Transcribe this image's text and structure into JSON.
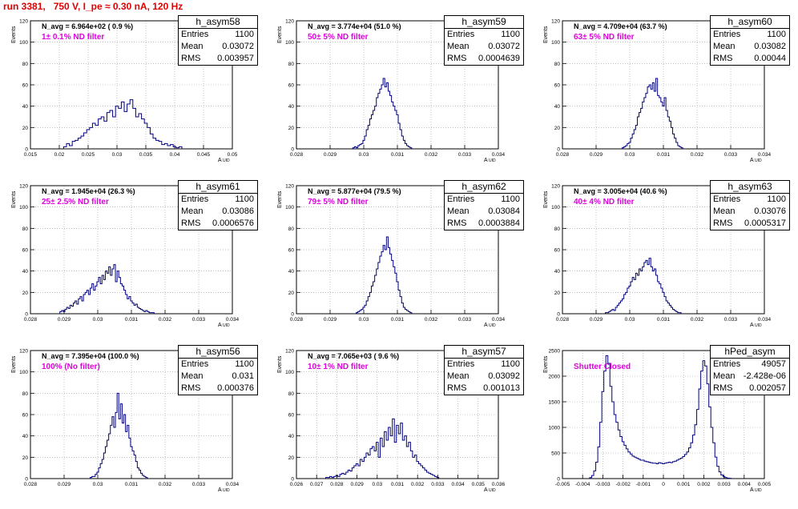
{
  "title": "run 3381,   750 V, I_pe ≈ 0.30 nA, 120 Hz",
  "chart_data": [
    {
      "type": "bar",
      "histogram": true,
      "name": "h_asym58",
      "stats": {
        "entries": "1100",
        "mean": "0.03072",
        "rms": "0.003957"
      },
      "n_avg": "N_avg = 6.964e+02 ( 0.9 %)",
      "filter": "1± 0.1% ND filter",
      "xlabel": "A",
      "xlabel_sub": "UID",
      "ylabel": "Events",
      "xlim": [
        0.015,
        0.05
      ],
      "ylim": [
        0,
        120
      ],
      "xticks": [
        "0.015",
        "0.02",
        "0.025",
        "0.03",
        "0.035",
        "0.04",
        "0.045",
        "0.05"
      ],
      "yticks": [
        "0",
        "20",
        "40",
        "60",
        "80",
        "100",
        "120"
      ],
      "x": [
        0.021,
        0.0215,
        0.022,
        0.0225,
        0.023,
        0.0235,
        0.024,
        0.0245,
        0.025,
        0.0255,
        0.026,
        0.0265,
        0.027,
        0.0275,
        0.028,
        0.0285,
        0.029,
        0.0295,
        0.03,
        0.0305,
        0.031,
        0.0315,
        0.032,
        0.0325,
        0.033,
        0.0335,
        0.034,
        0.0345,
        0.035,
        0.0355,
        0.036,
        0.0365,
        0.037,
        0.0375,
        0.038,
        0.0385,
        0.039,
        0.0395,
        0.04,
        0.0405,
        0.041
      ],
      "values": [
        2,
        5,
        3,
        7,
        8,
        10,
        12,
        15,
        18,
        20,
        24,
        22,
        28,
        30,
        26,
        34,
        36,
        30,
        40,
        38,
        44,
        35,
        42,
        46,
        38,
        30,
        33,
        28,
        24,
        20,
        14,
        10,
        8,
        7,
        4,
        5,
        3,
        4,
        2,
        1,
        2
      ]
    },
    {
      "type": "bar",
      "histogram": true,
      "name": "h_asym59",
      "stats": {
        "entries": "1100",
        "mean": "0.03072",
        "rms": "0.0004639"
      },
      "n_avg": "N_avg = 3.774e+04 (51.0 %)",
      "filter": "50± 5% ND filter",
      "xlabel": "A",
      "xlabel_sub": "UID",
      "ylabel": "Events",
      "xlim": [
        0.028,
        0.034
      ],
      "ylim": [
        0,
        120
      ],
      "xticks": [
        "0.028",
        "0.029",
        "0.03",
        "0.031",
        "0.032",
        "0.033",
        "0.034"
      ],
      "yticks": [
        "0",
        "20",
        "40",
        "60",
        "80",
        "100",
        "120"
      ],
      "x": [
        0.0297,
        0.02975,
        0.0298,
        0.02985,
        0.0299,
        0.02995,
        0.03,
        0.03005,
        0.0301,
        0.03015,
        0.0302,
        0.03025,
        0.0303,
        0.03035,
        0.0304,
        0.03045,
        0.0305,
        0.03055,
        0.0306,
        0.03065,
        0.0307,
        0.03075,
        0.0308,
        0.03085,
        0.0309,
        0.03095,
        0.031,
        0.03105,
        0.0311,
        0.03115,
        0.0312,
        0.03125,
        0.0313,
        0.03135,
        0.0314
      ],
      "values": [
        1,
        2,
        1,
        3,
        4,
        5,
        8,
        12,
        18,
        22,
        28,
        32,
        36,
        40,
        48,
        52,
        56,
        60,
        66,
        58,
        62,
        54,
        50,
        44,
        40,
        36,
        32,
        24,
        18,
        12,
        8,
        5,
        3,
        2,
        1
      ]
    },
    {
      "type": "bar",
      "histogram": true,
      "name": "h_asym60",
      "stats": {
        "entries": "1100",
        "mean": "0.03082",
        "rms": "0.00044"
      },
      "n_avg": "N_avg = 4.709e+04 (63.7 %)",
      "filter": "63± 5% ND filter",
      "xlabel": "A",
      "xlabel_sub": "UID",
      "ylabel": "Events",
      "xlim": [
        0.028,
        0.034
      ],
      "ylim": [
        0,
        120
      ],
      "xticks": [
        "0.028",
        "0.029",
        "0.03",
        "0.031",
        "0.032",
        "0.033",
        "0.034"
      ],
      "yticks": [
        "0",
        "20",
        "40",
        "60",
        "80",
        "100",
        "120"
      ],
      "x": [
        0.0298,
        0.02985,
        0.0299,
        0.02995,
        0.03,
        0.03005,
        0.0301,
        0.03015,
        0.0302,
        0.03025,
        0.0303,
        0.03035,
        0.0304,
        0.03045,
        0.0305,
        0.03055,
        0.0306,
        0.03065,
        0.0307,
        0.03075,
        0.0308,
        0.03085,
        0.0309,
        0.03095,
        0.031,
        0.03105,
        0.0311,
        0.03115,
        0.0312,
        0.03125,
        0.0313,
        0.03135,
        0.0314,
        0.03145,
        0.0315,
        0.03155
      ],
      "values": [
        1,
        2,
        3,
        5,
        6,
        10,
        14,
        18,
        22,
        30,
        34,
        38,
        44,
        48,
        52,
        58,
        60,
        56,
        62,
        54,
        66,
        50,
        48,
        44,
        40,
        48,
        36,
        30,
        26,
        20,
        14,
        10,
        6,
        3,
        2,
        1
      ]
    },
    {
      "type": "bar",
      "histogram": true,
      "name": "h_asym61",
      "stats": {
        "entries": "1100",
        "mean": "0.03086",
        "rms": "0.0006576"
      },
      "n_avg": "N_avg = 1.945e+04 (26.3 %)",
      "filter": "25± 2.5% ND filter",
      "xlabel": "A",
      "xlabel_sub": "UID",
      "ylabel": "Events",
      "xlim": [
        0.028,
        0.034
      ],
      "ylim": [
        0,
        120
      ],
      "xticks": [
        "0.028",
        "0.029",
        "0.03",
        "0.031",
        "0.032",
        "0.033",
        "0.034"
      ],
      "yticks": [
        "0",
        "20",
        "40",
        "60",
        "80",
        "100",
        "120"
      ],
      "x": [
        0.0289,
        0.02895,
        0.029,
        0.02905,
        0.0291,
        0.02915,
        0.0292,
        0.02925,
        0.0293,
        0.02935,
        0.0294,
        0.02945,
        0.0295,
        0.02955,
        0.0296,
        0.02965,
        0.0297,
        0.02975,
        0.0298,
        0.02985,
        0.0299,
        0.02995,
        0.03,
        0.03005,
        0.0301,
        0.03015,
        0.0302,
        0.03025,
        0.0303,
        0.03035,
        0.0304,
        0.03045,
        0.0305,
        0.03055,
        0.0306,
        0.03065,
        0.0307,
        0.03075,
        0.0308,
        0.03085,
        0.0309,
        0.03095,
        0.031,
        0.03105,
        0.0311,
        0.03115,
        0.0312,
        0.03125,
        0.0313,
        0.03135,
        0.0314,
        0.03145,
        0.0315,
        0.03155,
        0.0316,
        0.03165
      ],
      "values": [
        2,
        3,
        2,
        4,
        6,
        5,
        8,
        7,
        10,
        12,
        9,
        14,
        16,
        12,
        18,
        20,
        22,
        18,
        24,
        28,
        22,
        26,
        30,
        34,
        28,
        36,
        32,
        40,
        38,
        44,
        36,
        42,
        46,
        30,
        40,
        34,
        28,
        26,
        22,
        18,
        14,
        16,
        12,
        10,
        8,
        9,
        6,
        5,
        4,
        3,
        2,
        3,
        2,
        1,
        1,
        1
      ]
    },
    {
      "type": "bar",
      "histogram": true,
      "name": "h_asym62",
      "stats": {
        "entries": "1100",
        "mean": "0.03084",
        "rms": "0.0003884"
      },
      "n_avg": "N_avg = 5.877e+04 (79.5 %)",
      "filter": "79± 5% ND filter",
      "xlabel": "A",
      "xlabel_sub": "UID",
      "ylabel": "Events",
      "xlim": [
        0.028,
        0.034
      ],
      "ylim": [
        0,
        120
      ],
      "xticks": [
        "0.028",
        "0.029",
        "0.03",
        "0.031",
        "0.032",
        "0.033",
        "0.034"
      ],
      "yticks": [
        "0",
        "20",
        "40",
        "60",
        "80",
        "100",
        "120"
      ],
      "x": [
        0.0298,
        0.02985,
        0.0299,
        0.02995,
        0.03,
        0.03005,
        0.0301,
        0.03015,
        0.0302,
        0.03025,
        0.0303,
        0.03035,
        0.0304,
        0.03045,
        0.0305,
        0.03055,
        0.0306,
        0.03065,
        0.0307,
        0.03075,
        0.0308,
        0.03085,
        0.0309,
        0.03095,
        0.031,
        0.03105,
        0.0311,
        0.03115,
        0.0312,
        0.03125,
        0.0313,
        0.03135,
        0.0314
      ],
      "values": [
        1,
        2,
        3,
        4,
        6,
        8,
        12,
        16,
        20,
        26,
        30,
        36,
        42,
        48,
        54,
        58,
        64,
        60,
        72,
        62,
        56,
        50,
        44,
        38,
        30,
        22,
        16,
        10,
        6,
        4,
        3,
        2,
        1
      ]
    },
    {
      "type": "bar",
      "histogram": true,
      "name": "h_asym63",
      "stats": {
        "entries": "1100",
        "mean": "0.03076",
        "rms": "0.0005317"
      },
      "n_avg": "N_avg = 3.005e+04 (40.6 %)",
      "filter": "40± 4% ND filter",
      "xlabel": "A",
      "xlabel_sub": "UID",
      "ylabel": "Events",
      "xlim": [
        0.028,
        0.034
      ],
      "ylim": [
        0,
        120
      ],
      "xticks": [
        "0.028",
        "0.029",
        "0.03",
        "0.031",
        "0.032",
        "0.033",
        "0.034"
      ],
      "yticks": [
        "0",
        "20",
        "40",
        "60",
        "80",
        "100",
        "120"
      ],
      "x": [
        0.0293,
        0.02935,
        0.0294,
        0.02945,
        0.0295,
        0.02955,
        0.0296,
        0.02965,
        0.0297,
        0.02975,
        0.0298,
        0.02985,
        0.0299,
        0.02995,
        0.03,
        0.03005,
        0.0301,
        0.03015,
        0.0302,
        0.03025,
        0.0303,
        0.03035,
        0.0304,
        0.03045,
        0.0305,
        0.03055,
        0.0306,
        0.03065,
        0.0307,
        0.03075,
        0.0308,
        0.03085,
        0.0309,
        0.03095,
        0.031,
        0.03105,
        0.0311,
        0.03115,
        0.0312,
        0.03125,
        0.0313,
        0.03135,
        0.0314,
        0.03145,
        0.0315
      ],
      "values": [
        1,
        1,
        2,
        3,
        4,
        3,
        6,
        8,
        10,
        12,
        14,
        18,
        20,
        24,
        26,
        30,
        34,
        32,
        38,
        36,
        42,
        40,
        44,
        48,
        50,
        46,
        52,
        44,
        40,
        42,
        36,
        30,
        28,
        24,
        20,
        16,
        12,
        10,
        8,
        6,
        4,
        3,
        2,
        1,
        1
      ]
    },
    {
      "type": "bar",
      "histogram": true,
      "name": "h_asym56",
      "stats": {
        "entries": "1100",
        "mean": "0.031",
        "rms": "0.000376"
      },
      "n_avg": "N_avg = 7.395e+04 (100.0 %)",
      "filter": "100% (No filter)",
      "xlabel": "A",
      "xlabel_sub": "UID",
      "ylabel": "Events",
      "xlim": [
        0.028,
        0.034
      ],
      "ylim": [
        0,
        120
      ],
      "xticks": [
        "0.028",
        "0.029",
        "0.03",
        "0.031",
        "0.032",
        "0.033",
        "0.034"
      ],
      "yticks": [
        "0",
        "20",
        "40",
        "60",
        "80",
        "100",
        "120"
      ],
      "x": [
        0.0298,
        0.02985,
        0.0299,
        0.02995,
        0.03,
        0.03005,
        0.0301,
        0.03015,
        0.0302,
        0.03025,
        0.0303,
        0.03035,
        0.0304,
        0.03045,
        0.0305,
        0.03055,
        0.0306,
        0.03065,
        0.0307,
        0.03075,
        0.0308,
        0.03085,
        0.0309,
        0.03095,
        0.031,
        0.03105,
        0.0311,
        0.03115,
        0.0312,
        0.03125,
        0.0313,
        0.03135,
        0.0314,
        0.03145
      ],
      "values": [
        1,
        2,
        2,
        4,
        6,
        10,
        14,
        18,
        24,
        30,
        36,
        42,
        50,
        58,
        48,
        62,
        80,
        56,
        70,
        52,
        60,
        44,
        50,
        38,
        30,
        26,
        22,
        16,
        10,
        8,
        5,
        3,
        2,
        1
      ]
    },
    {
      "type": "bar",
      "histogram": true,
      "name": "h_asym57",
      "stats": {
        "entries": "1100",
        "mean": "0.03092",
        "rms": "0.001013"
      },
      "n_avg": "N_avg = 7.065e+03 ( 9.6 %)",
      "filter": "10± 1% ND filter",
      "xlabel": "A",
      "xlabel_sub": "UID",
      "ylabel": "Events",
      "xlim": [
        0.026,
        0.036
      ],
      "ylim": [
        0,
        120
      ],
      "xticks": [
        "0.026",
        "0.027",
        "0.028",
        "0.029",
        "0.03",
        "0.031",
        "0.032",
        "0.033",
        "0.034",
        "0.035",
        "0.036"
      ],
      "yticks": [
        "0",
        "20",
        "40",
        "60",
        "80",
        "100",
        "120"
      ],
      "x": [
        0.0275,
        0.0276,
        0.0277,
        0.0278,
        0.0279,
        0.028,
        0.0281,
        0.0282,
        0.0283,
        0.0284,
        0.0285,
        0.0286,
        0.0287,
        0.0288,
        0.0289,
        0.029,
        0.0291,
        0.0292,
        0.0293,
        0.0294,
        0.0295,
        0.0296,
        0.0297,
        0.0298,
        0.0299,
        0.03,
        0.0301,
        0.0302,
        0.0303,
        0.0304,
        0.0305,
        0.0306,
        0.0307,
        0.0308,
        0.0309,
        0.031,
        0.0311,
        0.0312,
        0.0313,
        0.0314,
        0.0315,
        0.0316,
        0.0317,
        0.0318,
        0.0319,
        0.032,
        0.0321,
        0.0322,
        0.0323,
        0.0324,
        0.0325,
        0.0326,
        0.0327,
        0.0328,
        0.0329,
        0.033
      ],
      "values": [
        1,
        1,
        2,
        1,
        2,
        3,
        2,
        4,
        5,
        4,
        6,
        8,
        7,
        10,
        12,
        14,
        12,
        18,
        16,
        20,
        24,
        22,
        28,
        30,
        26,
        34,
        20,
        38,
        30,
        44,
        36,
        48,
        40,
        56,
        34,
        50,
        42,
        52,
        36,
        40,
        30,
        34,
        26,
        20,
        22,
        16,
        14,
        12,
        10,
        8,
        6,
        5,
        4,
        3,
        2,
        1
      ]
    },
    {
      "type": "bar",
      "histogram": true,
      "name": "hPed_asym",
      "stats": {
        "entries": "49057",
        "mean": "-2.428e-06",
        "rms": "0.002057"
      },
      "filter": "Shutter Closed",
      "xlabel": "A",
      "xlabel_sub": "UID",
      "ylabel": "Events",
      "xlim": [
        -0.005,
        0.005
      ],
      "ylim": [
        0,
        2500
      ],
      "xticks": [
        "-0.005",
        "-0.004",
        "-0.003",
        "-0.002",
        "-0.001",
        "0",
        "0.001",
        "0.002",
        "0.003",
        "0.004",
        "0.005"
      ],
      "yticks": [
        "0",
        "500",
        "1000",
        "1500",
        "2000",
        "2500"
      ],
      "x": [
        -0.0036,
        -0.0035,
        -0.0034,
        -0.0033,
        -0.0032,
        -0.0031,
        -0.003,
        -0.0029,
        -0.0028,
        -0.0027,
        -0.0026,
        -0.0025,
        -0.0024,
        -0.0023,
        -0.0022,
        -0.0021,
        -0.002,
        -0.0019,
        -0.0018,
        -0.0017,
        -0.0016,
        -0.0015,
        -0.0014,
        -0.0013,
        -0.0012,
        -0.0011,
        -0.001,
        -0.0009,
        -0.0008,
        -0.0007,
        -0.0006,
        -0.0005,
        -0.0004,
        -0.0003,
        -0.0002,
        -0.0001,
        0,
        0.0001,
        0.0002,
        0.0003,
        0.0004,
        0.0005,
        0.0006,
        0.0007,
        0.0008,
        0.0009,
        0.001,
        0.0011,
        0.0012,
        0.0013,
        0.0014,
        0.0015,
        0.0016,
        0.0017,
        0.0018,
        0.0019,
        0.002,
        0.0021,
        0.0022,
        0.0023,
        0.0024,
        0.0025,
        0.0026,
        0.0027,
        0.0028,
        0.0029,
        0.003,
        0.0031,
        0.0032,
        0.0033
      ],
      "values": [
        20,
        60,
        150,
        320,
        620,
        1100,
        1700,
        2100,
        2400,
        2250,
        1800,
        1500,
        1250,
        1100,
        950,
        820,
        720,
        650,
        580,
        520,
        480,
        440,
        420,
        400,
        380,
        360,
        360,
        340,
        330,
        320,
        310,
        300,
        300,
        290,
        310,
        300,
        290,
        300,
        310,
        320,
        310,
        330,
        340,
        360,
        380,
        400,
        430,
        470,
        520,
        600,
        700,
        850,
        1050,
        1350,
        1750,
        2100,
        2300,
        2200,
        1850,
        1400,
        1000,
        700,
        420,
        240,
        130,
        70,
        40,
        20,
        10,
        5
      ]
    }
  ]
}
